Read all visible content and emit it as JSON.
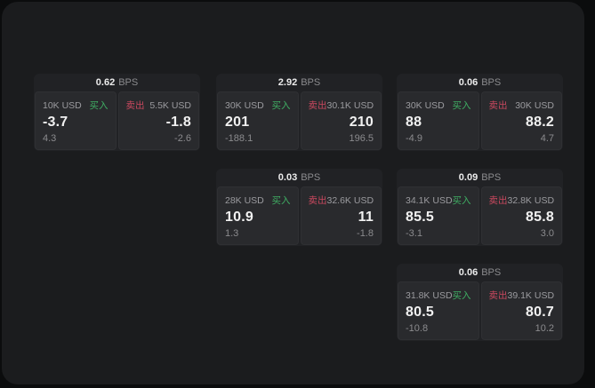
{
  "labels": {
    "bps": "BPS",
    "buy": "买入",
    "sell": "卖出"
  },
  "colors": {
    "buy_green": "#3fae63",
    "sell_red": "#c9485e",
    "page_bg": "#1b1c1e",
    "card_bg": "#212225",
    "panel_bg": "#292a2d"
  },
  "cards": [
    {
      "row": 1,
      "col": 1,
      "bps": "0.62",
      "buy": {
        "amount": "10K USD",
        "value": "-3.7",
        "sub": "4.3"
      },
      "sell": {
        "amount": "5.5K USD",
        "value": "-1.8",
        "sub": "-2.6"
      }
    },
    {
      "row": 1,
      "col": 2,
      "bps": "2.92",
      "buy": {
        "amount": "30K USD",
        "value": "201",
        "sub": "-188.1"
      },
      "sell": {
        "amount": "30.1K USD",
        "value": "210",
        "sub": "196.5"
      }
    },
    {
      "row": 1,
      "col": 3,
      "bps": "0.06",
      "buy": {
        "amount": "30K USD",
        "value": "88",
        "sub": "-4.9"
      },
      "sell": {
        "amount": "30K USD",
        "value": "88.2",
        "sub": "4.7"
      }
    },
    {
      "row": 2,
      "col": 2,
      "bps": "0.03",
      "buy": {
        "amount": "28K USD",
        "value": "10.9",
        "sub": "1.3"
      },
      "sell": {
        "amount": "32.6K USD",
        "value": "11",
        "sub": "-1.8"
      }
    },
    {
      "row": 2,
      "col": 3,
      "bps": "0.09",
      "buy": {
        "amount": "34.1K USD",
        "value": "85.5",
        "sub": "-3.1"
      },
      "sell": {
        "amount": "32.8K USD",
        "value": "85.8",
        "sub": "3.0"
      }
    },
    {
      "row": 3,
      "col": 3,
      "bps": "0.06",
      "buy": {
        "amount": "31.8K USD",
        "value": "80.5",
        "sub": "-10.8"
      },
      "sell": {
        "amount": "39.1K USD",
        "value": "80.7",
        "sub": "10.2"
      }
    }
  ]
}
